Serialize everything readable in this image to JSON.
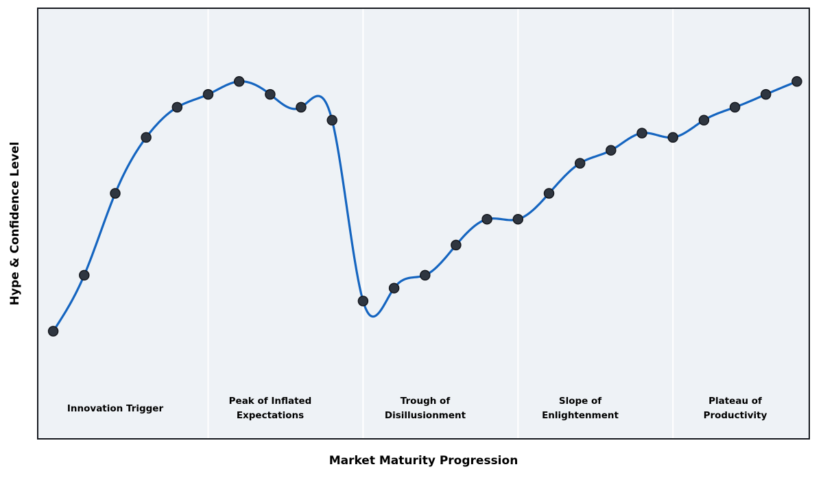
{
  "chart_data": {
    "type": "line",
    "title": "",
    "xlabel": "Market Maturity Progression",
    "ylabel": "Hype & Confidence Level",
    "x": [
      1,
      2,
      3,
      4,
      5,
      6,
      7,
      8,
      9,
      10,
      11,
      12,
      13,
      14,
      15,
      16,
      17,
      18,
      19,
      20,
      21,
      22,
      23,
      24,
      25
    ],
    "values": [
      25,
      38,
      57,
      70,
      77,
      80,
      83,
      80,
      77,
      74,
      32,
      35,
      38,
      45,
      51,
      51,
      57,
      64,
      67,
      71,
      70,
      74,
      77,
      80,
      83
    ],
    "xlim": [
      0.5,
      25.4
    ],
    "ylim": [
      0,
      100
    ],
    "grid": false,
    "legend": "none",
    "smoothing": "cubic-spline",
    "line_color": "#1565c0",
    "marker_color": "#2f3640",
    "marker_edge_color": "#15181e",
    "plot_background": "#eef2f6",
    "page_background": "#ffffff",
    "border_color": "#15181e",
    "separator_color": "#ffffff",
    "phase_boundaries_x": [
      6,
      11,
      16,
      21
    ],
    "phases": [
      {
        "label": "Innovation Trigger",
        "center_x": 3
      },
      {
        "label": "Peak of Inflated Expectations",
        "center_x": 8
      },
      {
        "label": "Trough of Disillusionment",
        "center_x": 13
      },
      {
        "label": "Slope of Enlightenment",
        "center_x": 18
      },
      {
        "label": "Plateau of Productivity",
        "center_x": 23
      }
    ]
  }
}
